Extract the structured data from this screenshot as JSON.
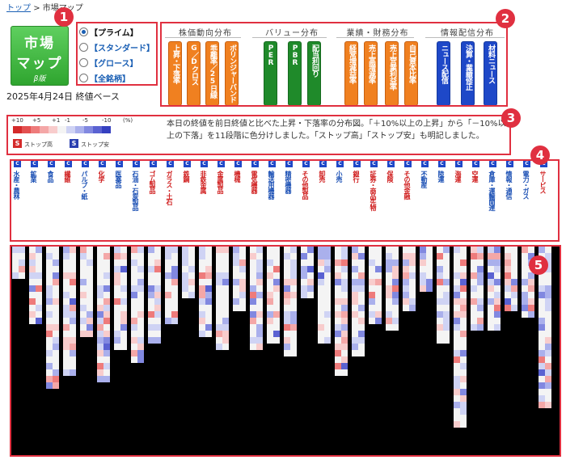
{
  "breadcrumb": {
    "home": "トップ",
    "sep": ">",
    "current": "市場マップ"
  },
  "logo": {
    "line1": "市場",
    "line2": "マップ",
    "line3": "β版"
  },
  "date_label": "2025年4月24日 終値ベース",
  "markets": [
    {
      "label": "【プライム】",
      "selected": true
    },
    {
      "label": "【スタンダード】",
      "selected": false
    },
    {
      "label": "【グロース】",
      "selected": false
    },
    {
      "label": "【全銘柄】",
      "selected": false
    }
  ],
  "view_groups": [
    {
      "label": "株価動向分布",
      "buttons": [
        {
          "label": "上昇・下落率",
          "color": "orange"
        },
        {
          "label": "G／Dクロス",
          "color": "orange"
        },
        {
          "label": "乖離率／25日線",
          "color": "orange"
        },
        {
          "label": "ボリンジャーバンド",
          "color": "orange"
        }
      ]
    },
    {
      "label": "バリュー分布",
      "buttons": [
        {
          "label": "PER",
          "color": "green"
        },
        {
          "label": "PBR",
          "color": "green"
        },
        {
          "label": "配当利回り",
          "color": "green"
        }
      ]
    },
    {
      "label": "業績・財務分布",
      "buttons": [
        {
          "label": "経常増減益率",
          "color": "orange"
        },
        {
          "label": "売上高増減率",
          "color": "orange"
        },
        {
          "label": "売上営業利益率",
          "color": "orange"
        },
        {
          "label": "自己資本比率",
          "color": "orange"
        }
      ]
    },
    {
      "label": "情報配信分布",
      "buttons": [
        {
          "label": "ニュース配信",
          "color": "blue"
        },
        {
          "label": "決算・業績修正",
          "color": "blue"
        },
        {
          "label": "材料ニュース",
          "color": "blue"
        }
      ]
    }
  ],
  "legend": {
    "ticks": [
      "+10",
      "+5",
      "+1",
      "-1",
      "-5",
      "-10",
      "(%)"
    ],
    "colors": [
      "#d42a2a",
      "#e35050",
      "#ee7b7b",
      "#f4a7a7",
      "#f8cccc",
      "#f4f4f4",
      "#cfd3f4",
      "#aab0ec",
      "#8188e0",
      "#5a62d2",
      "#3540c0"
    ],
    "stop_high_badge": "S",
    "stop_high_label": "ストップ高",
    "stop_low_badge": "S",
    "stop_low_label": "ストップ安",
    "stop_high_color": "#d42a2a",
    "stop_low_color": "#2a3fb0"
  },
  "description": "本日の終値を前日終値と比べた上昇・下落率の分布図。「＋10%以上の上昇」から「－10%以上の下落」を11段階に色分けしました。「ストップ高」「ストップ安」も明記しました。",
  "sector_icon": "C",
  "sectors": [
    {
      "name": "水産・農林",
      "color": "blue"
    },
    {
      "name": "鉱業",
      "color": "blue"
    },
    {
      "name": "食品",
      "color": "blue"
    },
    {
      "name": "繊維",
      "color": "red"
    },
    {
      "name": "パルプ・紙",
      "color": "blue"
    },
    {
      "name": "化学",
      "color": "red"
    },
    {
      "name": "医薬品",
      "color": "blue"
    },
    {
      "name": "石油・石炭製品",
      "color": "blue"
    },
    {
      "name": "ゴム製品",
      "color": "red"
    },
    {
      "name": "ガラス・土石",
      "color": "red"
    },
    {
      "name": "鉄鋼",
      "color": "red"
    },
    {
      "name": "非鉄金属",
      "color": "red"
    },
    {
      "name": "金属製品",
      "color": "red"
    },
    {
      "name": "機械",
      "color": "red"
    },
    {
      "name": "電気機器",
      "color": "red"
    },
    {
      "name": "輸送用機器",
      "color": "blue"
    },
    {
      "name": "精密機器",
      "color": "blue"
    },
    {
      "name": "その他製品",
      "color": "red"
    },
    {
      "name": "卸売",
      "color": "red"
    },
    {
      "name": "小売",
      "color": "blue"
    },
    {
      "name": "銀行",
      "color": "red"
    },
    {
      "name": "証券・商品先物",
      "color": "red"
    },
    {
      "name": "保険",
      "color": "red"
    },
    {
      "name": "その他金融",
      "color": "red"
    },
    {
      "name": "不動産",
      "color": "blue"
    },
    {
      "name": "陸運",
      "color": "blue"
    },
    {
      "name": "海運",
      "color": "red"
    },
    {
      "name": "空運",
      "color": "red"
    },
    {
      "name": "倉庫・運輸関連",
      "color": "blue"
    },
    {
      "name": "情報・通信",
      "color": "blue"
    },
    {
      "name": "電力・ガス",
      "color": "blue"
    },
    {
      "name": "サービス",
      "color": "red"
    }
  ],
  "badges": [
    "1",
    "2",
    "3",
    "4",
    "5"
  ]
}
